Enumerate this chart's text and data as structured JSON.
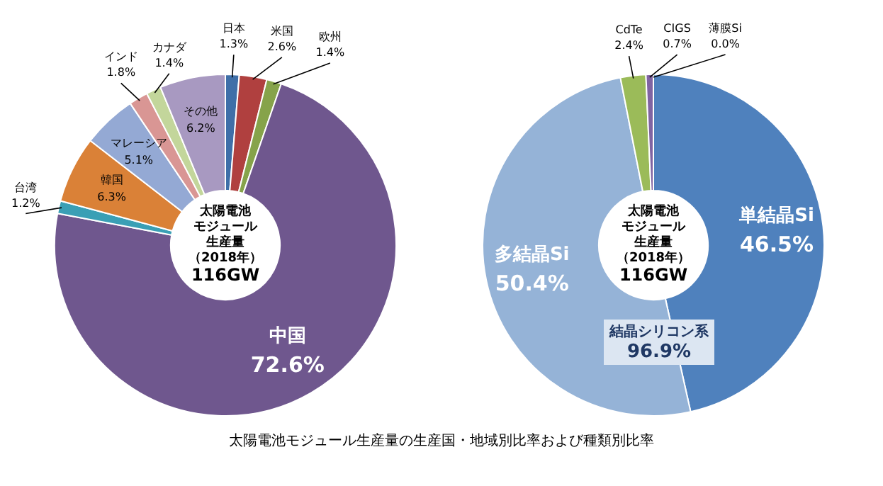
{
  "chart_data": [
    {
      "type": "donut",
      "title": "太陽電池モジュール生産量の生産国・地域別比率および種類別比率",
      "categories": [
        "日本",
        "米国",
        "欧州",
        "中国",
        "台湾",
        "韓国",
        "マレーシア",
        "インド",
        "カナダ",
        "その他"
      ],
      "values": [
        1.3,
        2.6,
        1.4,
        72.6,
        1.2,
        6.3,
        5.1,
        1.8,
        1.4,
        6.2
      ],
      "value_labels": [
        "1.3%",
        "2.6%",
        "1.4%",
        "72.6%",
        "1.2%",
        "6.3%",
        "5.1%",
        "1.8%",
        "1.4%",
        "6.2%"
      ],
      "colors": [
        "#3f6fa8",
        "#b0403f",
        "#86a34a",
        "#6f578e",
        "#3a9fb5",
        "#da8137",
        "#94a9d4",
        "#d99694",
        "#c3d69b",
        "#a899c1"
      ],
      "annotations": [
        "太陽電池",
        "モジュール",
        "生産量",
        "（2018年）",
        "116GW"
      ]
    },
    {
      "type": "donut",
      "categories": [
        "単結晶Si",
        "多結晶Si",
        "CdTe",
        "CIGS",
        "薄膜Si"
      ],
      "values": [
        46.5,
        50.4,
        2.4,
        0.7,
        0.0
      ],
      "value_labels": [
        "46.5%",
        "50.4%",
        "2.4%",
        "0.7%",
        "0.0%"
      ],
      "colors": [
        "#4f81bd",
        "#95b3d7",
        "#9bbb59",
        "#8064a2",
        "#4bacc6"
      ],
      "annotations": [
        "太陽電池",
        "モジュール",
        "生産量",
        "（2018年）",
        "116GW",
        "結晶シリコン系",
        "96.9%"
      ]
    }
  ]
}
